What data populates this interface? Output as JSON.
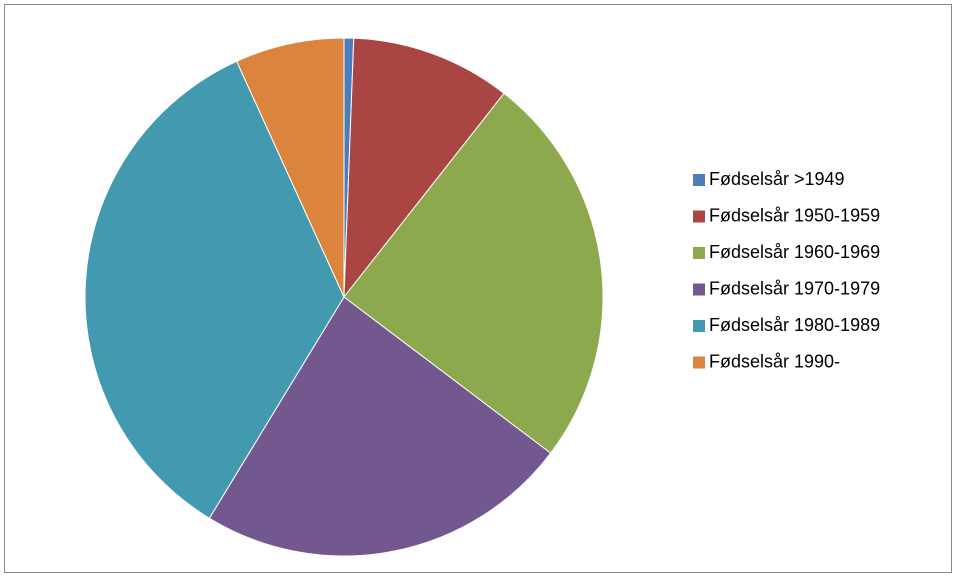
{
  "chart_data": {
    "type": "pie",
    "categories": [
      "Fødselsår >1949",
      "Fødselsår 1950-1959",
      "Fødselsår 1960-1969",
      "Fødselsår 1970-1979",
      "Fødselsår 1980-1989",
      "Fødselsår 1990-"
    ],
    "values": [
      0.6,
      10.0,
      24.7,
      23.4,
      34.5,
      6.8
    ],
    "colors": [
      "#4a7dba",
      "#a94543",
      "#8ca94e",
      "#72588f",
      "#4399b0",
      "#db843d"
    ],
    "legend": "right"
  }
}
